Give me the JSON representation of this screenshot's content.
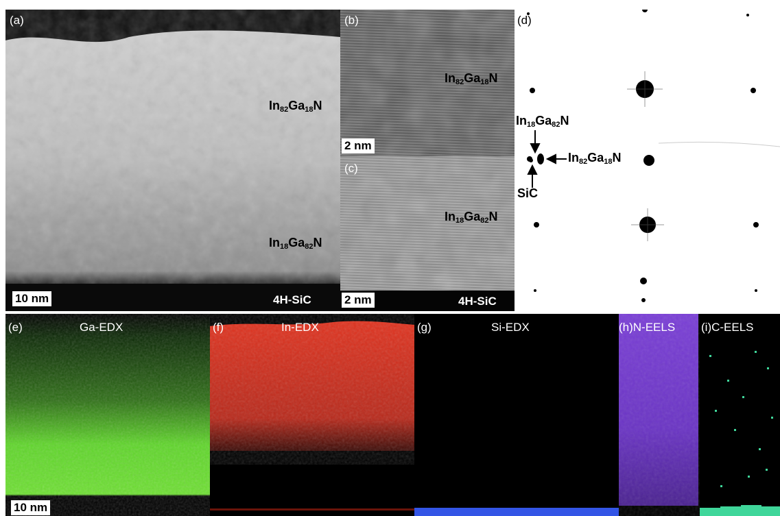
{
  "panels": {
    "a": {
      "label": "(a)",
      "top_layer": {
        "el1": "In",
        "s1": "82",
        "el2": "Ga",
        "s2": "18",
        "el3": "N"
      },
      "bottom_layer": {
        "el1": "In",
        "s1": "18",
        "el2": "Ga",
        "s2": "82",
        "el3": "N"
      },
      "scale": "10 nm",
      "substrate": "4H-SiC"
    },
    "b": {
      "label": "(b)",
      "layer": {
        "el1": "In",
        "s1": "82",
        "el2": "Ga",
        "s2": "18",
        "el3": "N"
      },
      "scale": "2 nm"
    },
    "c": {
      "label": "(c)",
      "layer": {
        "el1": "In",
        "s1": "18",
        "el2": "Ga",
        "s2": "82",
        "el3": "N"
      },
      "scale": "2 nm",
      "substrate": "4H-SiC"
    },
    "d": {
      "label": "(d)",
      "spot1": {
        "el1": "In",
        "s1": "18",
        "el2": "Ga",
        "s2": "82",
        "el3": "N"
      },
      "spot2": {
        "el1": "In",
        "s1": "82",
        "el2": "Ga",
        "s2": "18",
        "el3": "N"
      },
      "spot3": "SiC"
    },
    "e": {
      "label": "(e)",
      "title": "Ga-EDX",
      "scale": "10 nm",
      "color": "#5fd62a"
    },
    "f": {
      "label": "(f)",
      "title": "In-EDX",
      "color": "#e0321e"
    },
    "g": {
      "label": "(g)",
      "title": "Si-EDX",
      "color": "#3355e6"
    },
    "h": {
      "label": "(h)",
      "title": "N-EELS",
      "color": "#7a3fd6"
    },
    "i": {
      "label": "(i)",
      "title": "C-EELS",
      "color": "#3fd69a"
    }
  }
}
